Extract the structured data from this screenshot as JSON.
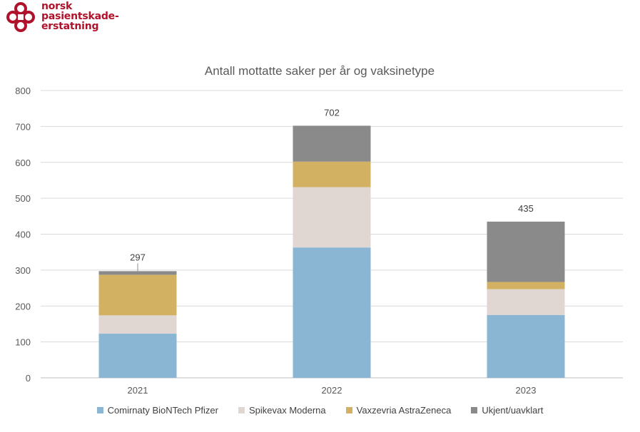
{
  "brand": {
    "lines": [
      "norsk",
      "pasientskade-",
      "erstatning"
    ],
    "color": "#b0122b"
  },
  "chart_data": {
    "type": "bar",
    "stacked": true,
    "title": "Antall mottatte saker per år og vaksinetype",
    "categories": [
      "2021",
      "2022",
      "2023"
    ],
    "ylim": [
      0,
      800
    ],
    "yticks": [
      0,
      100,
      200,
      300,
      400,
      500,
      600,
      700,
      800
    ],
    "grid": true,
    "legend_position": "bottom",
    "series": [
      {
        "name": "Comirnaty BioNTech Pfizer",
        "color": "#8ab6d3",
        "values": [
          123,
          363,
          175
        ]
      },
      {
        "name": "Spikevax Moderna",
        "color": "#e0d6d2",
        "values": [
          51,
          168,
          72
        ]
      },
      {
        "name": "Vaxzevria AstraZeneca",
        "color": "#d3b163",
        "values": [
          113,
          71,
          20
        ]
      },
      {
        "name": "Ukjent/uavklart",
        "color": "#8a8a8a",
        "values": [
          10,
          100,
          168
        ]
      }
    ],
    "totals": [
      "297",
      "702",
      "435"
    ]
  }
}
